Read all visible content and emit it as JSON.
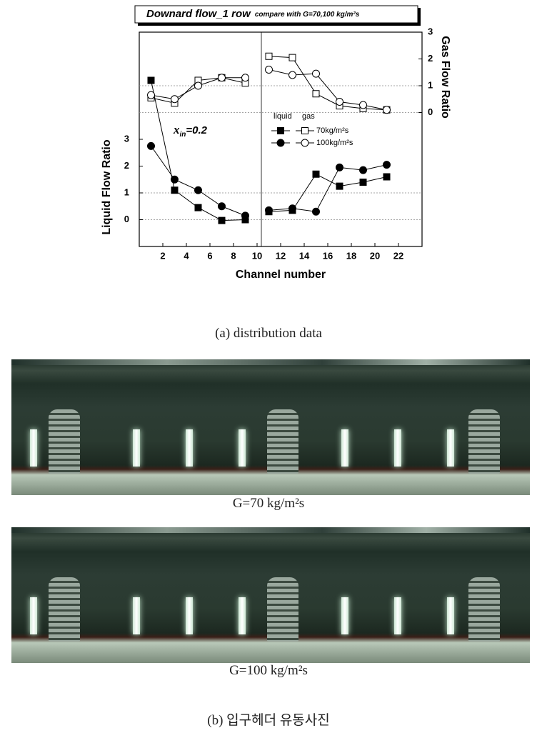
{
  "chart_data": {
    "type": "line",
    "title": "Downard flow_1 row",
    "subtitle": "compare with G=70,100 kg/m²s",
    "x_label": "Channel number",
    "y_label": "Liquid Flow Ratio",
    "y2_label": "Gas Flow Ratio",
    "annotation": {
      "symbol": "x",
      "subscript": "in",
      "text": "=0.2"
    },
    "legend_columns": [
      "liquid",
      "gas"
    ],
    "x": [
      1,
      3,
      5,
      7,
      9,
      10,
      11,
      13,
      15,
      17,
      19,
      21
    ],
    "series": [
      {
        "name": "70kg/m²s",
        "marker": "square",
        "color": "#000000",
        "liquid": [
          5.2,
          1.1,
          0.45,
          -0.03,
          0,
          null,
          0.3,
          0.35,
          1.7,
          1.25,
          1.4,
          1.6
        ],
        "gas": [
          0.55,
          0.35,
          1.2,
          1.3,
          1.1,
          null,
          2.1,
          2.05,
          0.7,
          0.25,
          0.15,
          0.1
        ]
      },
      {
        "name": "100kg/m²s",
        "marker": "circle",
        "color": "#000000",
        "liquid": [
          2.75,
          1.5,
          1.1,
          0.5,
          0.15,
          null,
          0.35,
          0.42,
          0.3,
          1.95,
          1.85,
          2.05
        ],
        "gas": [
          0.65,
          0.5,
          1.0,
          1.3,
          1.3,
          null,
          1.6,
          1.4,
          1.45,
          0.4,
          0.28,
          0.1
        ]
      }
    ],
    "xlim": [
      0,
      24
    ],
    "xticks": [
      2,
      4,
      6,
      8,
      10,
      12,
      14,
      16,
      18,
      20,
      22
    ],
    "ylim": [
      -1,
      7
    ],
    "yticks": [
      0,
      1,
      2,
      3
    ],
    "y2lim": [
      -5,
      3
    ],
    "y2ticks": [
      0,
      1,
      2,
      3
    ],
    "grid_lines": {
      "y": [
        0,
        1
      ],
      "y2": [
        0,
        1
      ]
    }
  },
  "figure": {
    "caption_a": "(a) distribution data",
    "photos": [
      {
        "caption": "G=70 kg/m²s"
      },
      {
        "caption": "G=100 kg/m²s"
      }
    ],
    "caption_b": "(b) 입구헤더 유동사진"
  }
}
